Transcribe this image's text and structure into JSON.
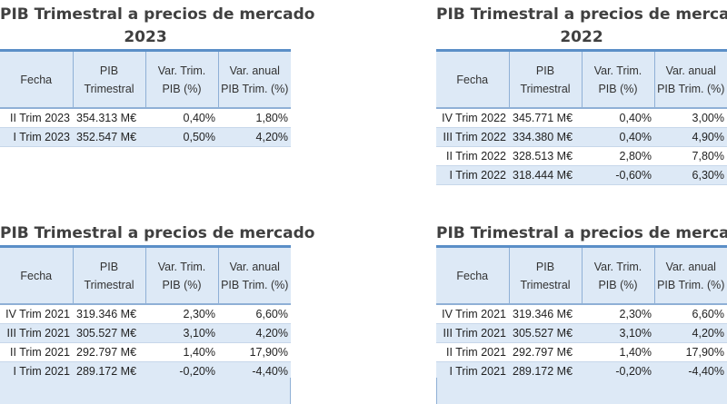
{
  "headers": {
    "fecha": "Fecha",
    "pib": "PIB Trimestral",
    "var_trim": "Var. Trim. PIB (%)",
    "var_anual": "Var. anual PIB Trim. (%)"
  },
  "tables": [
    {
      "title_line1": "PIB Trimestral a precios de mercado",
      "title_line2": "2023",
      "rows": [
        {
          "fecha": "II Trim 2023",
          "pib": "354.313 M€",
          "var_trim": "0,40%",
          "var_anual": "1,80%"
        },
        {
          "fecha": "I Trim 2023",
          "pib": "352.547 M€",
          "var_trim": "0,50%",
          "var_anual": "4,20%"
        }
      ]
    },
    {
      "title_line1": "PIB Trimestral a precios de mercado",
      "title_line2": "2022",
      "rows": [
        {
          "fecha": "IV Trim 2022",
          "pib": "345.771 M€",
          "var_trim": "0,40%",
          "var_anual": "3,00%"
        },
        {
          "fecha": "III Trim 2022",
          "pib": "334.380 M€",
          "var_trim": "0,40%",
          "var_anual": "4,90%"
        },
        {
          "fecha": "II Trim 2022",
          "pib": "328.513 M€",
          "var_trim": "2,80%",
          "var_anual": "7,80%"
        },
        {
          "fecha": "I Trim 2022",
          "pib": "318.444 M€",
          "var_trim": "-0,60%",
          "var_anual": "6,30%"
        }
      ]
    },
    {
      "title_line1": "PIB Trimestral a precios de mercado",
      "rows": [
        {
          "fecha": "IV Trim 2021",
          "pib": "319.346 M€",
          "var_trim": "2,30%",
          "var_anual": "6,60%"
        },
        {
          "fecha": "III Trim 2021",
          "pib": "305.527 M€",
          "var_trim": "3,10%",
          "var_anual": "4,20%"
        },
        {
          "fecha": "II Trim 2021",
          "pib": "292.797 M€",
          "var_trim": "1,40%",
          "var_anual": "17,90%"
        },
        {
          "fecha": "I Trim 2021",
          "pib": "289.172 M€",
          "var_trim": "-0,20%",
          "var_anual": "-4,40%"
        }
      ]
    },
    {
      "title_line1": "PIB Trimestral a precios de mercado",
      "rows": [
        {
          "fecha": "IV Trim 2021",
          "pib": "319.346 M€",
          "var_trim": "2,30%",
          "var_anual": "6,60%"
        },
        {
          "fecha": "III Trim 2021",
          "pib": "305.527 M€",
          "var_trim": "3,10%",
          "var_anual": "4,20%"
        },
        {
          "fecha": "II Trim 2021",
          "pib": "292.797 M€",
          "var_trim": "1,40%",
          "var_anual": "17,90%"
        },
        {
          "fecha": "I Trim 2021",
          "pib": "289.172 M€",
          "var_trim": "-0,20%",
          "var_anual": "-4,40%"
        }
      ]
    }
  ]
}
